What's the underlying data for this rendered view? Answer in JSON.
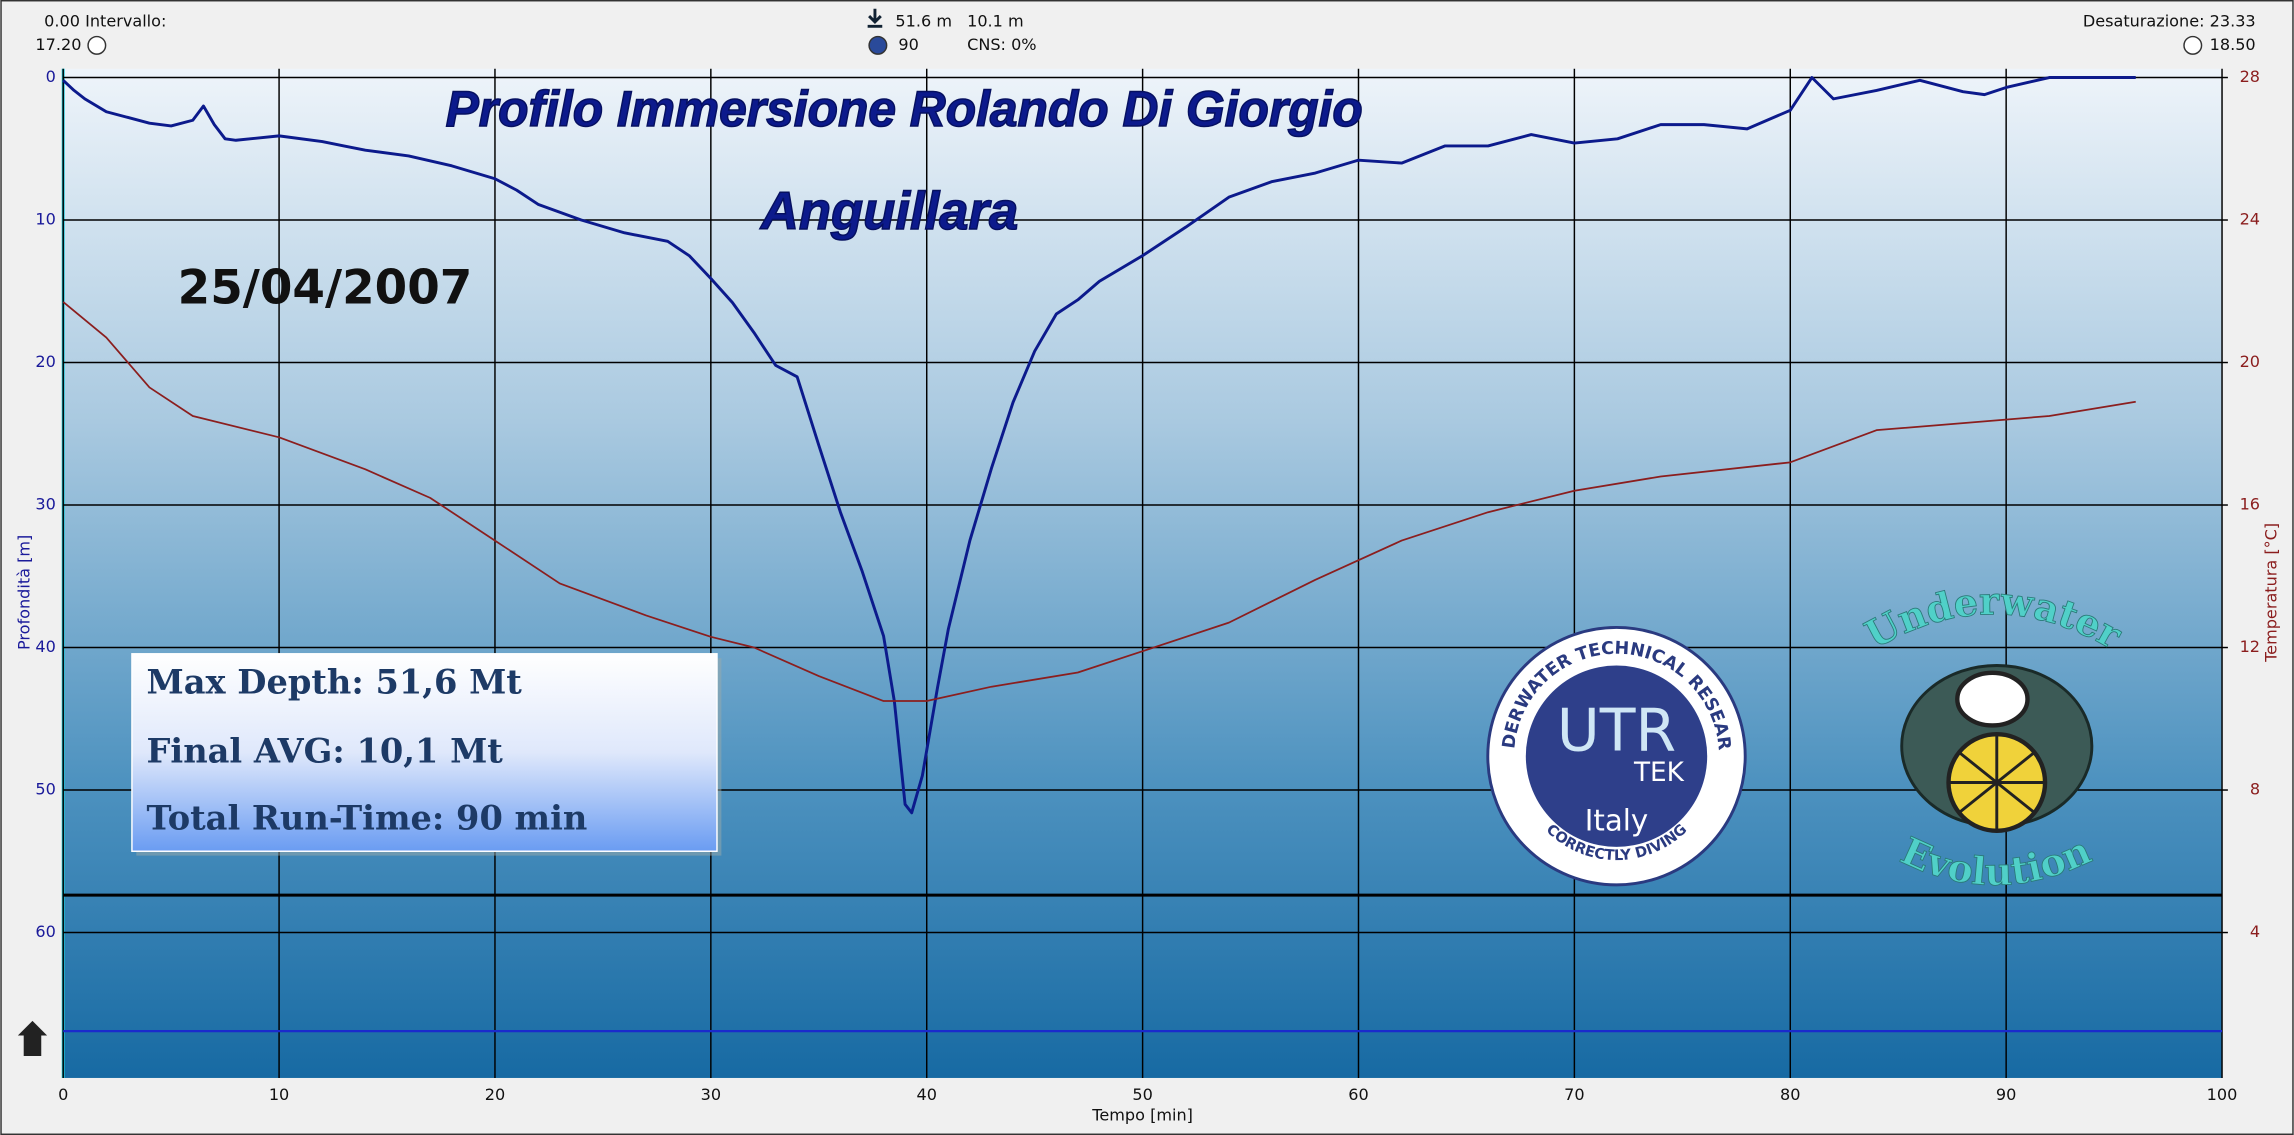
{
  "header": {
    "interval_label": "0.00 Intervallo:",
    "interval_time": "17.20",
    "max_depth": "51.6 m",
    "avg_depth": "10.1 m",
    "run_time": "90",
    "cns": "CNS: 0%",
    "desaturation": "Desaturazione: 23.33",
    "end_time": "18.50"
  },
  "chart_data": {
    "type": "line",
    "title": "Profilo Immersione Rolando Di Giorgio",
    "subtitle": "Anguillara",
    "date": "25/04/2007",
    "x_label": "Tempo [min]",
    "y_label": "Profondità [m]",
    "y2_label": "Temperatura [°C]",
    "xlim": [
      0,
      100
    ],
    "xticks": [
      0,
      10,
      20,
      30,
      40,
      50,
      60,
      70,
      80,
      90,
      100
    ],
    "ylim": [
      70,
      0
    ],
    "yticks": [
      0,
      10,
      20,
      30,
      40,
      50,
      60
    ],
    "y2lim": [
      0,
      28
    ],
    "y2ticks": [
      4,
      8,
      12,
      16,
      20,
      24,
      28
    ],
    "grid": true,
    "series": [
      {
        "name": "Profondità",
        "color": "#0c1a8c",
        "axis": "y",
        "x": [
          0,
          0.5,
          1,
          2,
          3,
          4,
          5,
          6,
          6.5,
          7,
          7.5,
          8,
          10,
          12,
          13,
          14,
          16,
          18,
          20,
          21,
          22,
          24,
          26,
          28,
          29,
          30,
          31,
          32,
          33,
          34,
          35,
          36,
          37,
          38,
          38.5,
          39,
          39.3,
          39.8,
          40.5,
          41,
          42,
          43,
          44,
          45,
          46,
          47,
          48,
          50,
          52,
          54,
          56,
          58,
          60,
          62,
          64,
          66,
          68,
          70,
          72,
          74,
          76,
          78,
          80,
          81,
          82,
          84,
          86,
          88,
          89,
          90,
          92,
          96
        ],
        "values": [
          0.2,
          0.9,
          1.5,
          2.4,
          2.8,
          3.2,
          3.4,
          3.0,
          2.0,
          3.3,
          4.3,
          4.4,
          4.1,
          4.5,
          4.8,
          5.1,
          5.5,
          6.2,
          7.1,
          7.9,
          8.9,
          10.0,
          10.9,
          11.5,
          12.5,
          14.1,
          15.8,
          17.9,
          20.2,
          21.0,
          25.8,
          30.5,
          34.6,
          39.2,
          43.8,
          51.0,
          51.6,
          49.0,
          42.8,
          38.7,
          32.5,
          27.4,
          22.8,
          19.2,
          16.6,
          15.6,
          14.3,
          12.5,
          10.5,
          8.4,
          7.3,
          6.7,
          5.8,
          6.0,
          4.8,
          4.8,
          4.0,
          4.6,
          4.3,
          3.3,
          3.3,
          3.6,
          2.3,
          0,
          1.5,
          0.9,
          0.2,
          1.0,
          1.2,
          0.7,
          0,
          0
        ]
      },
      {
        "name": "Temperatura",
        "color": "#8b1e1e",
        "axis": "y2",
        "x": [
          0,
          2,
          4,
          6,
          10,
          14,
          17,
          20,
          23,
          27,
          30,
          32,
          35,
          38,
          40,
          43,
          47,
          50,
          54,
          58,
          62,
          66,
          70,
          74,
          80,
          84,
          88,
          92,
          96
        ],
        "values": [
          21.7,
          20.7,
          19.3,
          18.5,
          17.9,
          17.0,
          16.2,
          15.0,
          13.8,
          12.9,
          12.3,
          12.0,
          11.2,
          10.5,
          10.5,
          10.9,
          11.3,
          11.9,
          12.7,
          13.9,
          15.0,
          15.8,
          16.4,
          16.8,
          17.2,
          18.1,
          18.3,
          18.5,
          18.9
        ]
      }
    ]
  },
  "summary": [
    "Max Depth: 51,6 Mt",
    "Final AVG: 10,1 Mt",
    "Total Run-Time: 90 min"
  ],
  "logos": {
    "utr_ring_top": "UNDERWATER TECHNICAL RESEARCH",
    "utr_ring_bottom": "CORRECTLY DIVING",
    "utr_main": "UTR",
    "utr_tek": "TEK",
    "utr_country": "Italy",
    "evo_top": "Underwater",
    "evo_bottom": "Evolution"
  }
}
